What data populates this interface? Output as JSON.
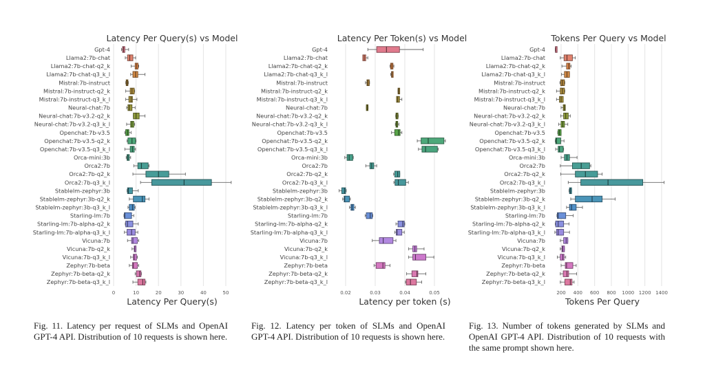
{
  "models": [
    "Gpt-4",
    "Llama2:7b-chat",
    "Llama2:7b-chat-q2_k",
    "Llama2:7b-chat-q3_k_l",
    "Mistral:7b-instruct",
    "Mistral:7b-instruct-q2_k",
    "Mistral:7b-instruct-q3_k_l",
    "Neural-chat:7b",
    "Neural-chat:7b-v3.2-q2_k",
    "Neural-chat:7b-v3.2-q3_k_l",
    "Openchat:7b-v3.5",
    "Openchat:7b-v3.5-q2_k",
    "Openchat:7b-v3.5-q3_k_l",
    "Orca-mini:3b",
    "Orca2:7b",
    "Orca2:7b-q2_k",
    "Orca2:7b-q3_k_l",
    "Stablelm-zephyr:3b",
    "Stablelm-zephyr:3b-q2_k",
    "Stablelm-zephyr:3b-q3_k_l",
    "Starling-lm:7b",
    "Starling-lm:7b-alpha-q2_k",
    "Starling-lm:7b-alpha-q3_k_l",
    "Vicuna:7b",
    "Vicuna:7b-q2_k",
    "Vicuna:7b-q3_k_l",
    "Zephyr:7b-beta",
    "Zephyr:7b-beta-q2_k",
    "Zephyr:7b-beta-q3_k_l"
  ],
  "colors": [
    "#e07a8c",
    "#e0826e",
    "#e08a4c",
    "#d48c48",
    "#b58a40",
    "#b09040",
    "#a89440",
    "#9c983e",
    "#909c3e",
    "#7ea23e",
    "#5aa64a",
    "#4ea87a",
    "#4aa47e",
    "#48a08a",
    "#489e94",
    "#489c98",
    "#48989c",
    "#4898a4",
    "#4a94b8",
    "#5090c8",
    "#6a90d8",
    "#8a90e0",
    "#9a8ce0",
    "#b288e0",
    "#c47ed8",
    "#cc78cc",
    "#d478c0",
    "#d878b0",
    "#dc78a0"
  ],
  "chart_data": [
    {
      "type": "boxplot",
      "title": "Latency Per Query(s) vs Model",
      "xlabel": "Latency Per Query(s)",
      "ylabel": "",
      "xlim": [
        0,
        53
      ],
      "xticks": [
        0,
        10,
        20,
        30,
        40,
        50
      ],
      "grid": true,
      "series": [
        {
          "model": "Gpt-4",
          "whislo": 3.5,
          "q1": 4.0,
          "med": 4.4,
          "q3": 5.0,
          "whishi": 6.7
        },
        {
          "model": "Llama2:7b-chat",
          "whislo": 5.2,
          "q1": 6.2,
          "med": 7.2,
          "q3": 8.6,
          "whishi": 9.8
        },
        {
          "model": "Llama2:7b-chat-q2_k",
          "whislo": 7.8,
          "q1": 9.6,
          "med": 10.2,
          "q3": 10.9,
          "whishi": 11.2
        },
        {
          "model": "Llama2:7b-chat-q3_k_l",
          "whislo": 7.6,
          "q1": 8.6,
          "med": 9.8,
          "q3": 10.8,
          "whishi": 14.0
        },
        {
          "model": "Mistral:7b-instruct",
          "whislo": 5.4,
          "q1": 5.6,
          "med": 6.0,
          "q3": 6.4,
          "whishi": 6.6
        },
        {
          "model": "Mistral:7b-instruct-q2_k",
          "whislo": 5.4,
          "q1": 7.4,
          "med": 8.2,
          "q3": 9.2,
          "whishi": 9.4
        },
        {
          "model": "Mistral:7b-instruct-q3_k_l",
          "whislo": 5.4,
          "q1": 6.8,
          "med": 7.8,
          "q3": 8.4,
          "whishi": 10.4
        },
        {
          "model": "Neural-chat:7b",
          "whislo": 5.8,
          "q1": 6.4,
          "med": 7.0,
          "q3": 8.2,
          "whishi": 9.6
        },
        {
          "model": "Neural-chat:7b-v3.2-q2_k",
          "whislo": 8.8,
          "q1": 8.8,
          "med": 10.0,
          "q3": 11.4,
          "whishi": 14.0
        },
        {
          "model": "Neural-chat:7b-v3.2-q3_k_l",
          "whislo": 5.8,
          "q1": 7.6,
          "med": 8.2,
          "q3": 9.0,
          "whishi": 9.4
        },
        {
          "model": "Openchat:7b-v3.5",
          "whislo": 5.0,
          "q1": 5.4,
          "med": 6.2,
          "q3": 6.8,
          "whishi": 7.8
        },
        {
          "model": "Openchat:7b-v3.5-q2_k",
          "whislo": 6.0,
          "q1": 6.4,
          "med": 8.2,
          "q3": 9.8,
          "whishi": 10.0
        },
        {
          "model": "Openchat:7b-v3.5-q3_k_l",
          "whislo": 5.0,
          "q1": 7.4,
          "med": 8.4,
          "q3": 9.2,
          "whishi": 9.8
        },
        {
          "model": "Orca-mini:3b",
          "whislo": 5.6,
          "q1": 6.0,
          "med": 6.4,
          "q3": 7.0,
          "whishi": 7.6
        },
        {
          "model": "Orca2:7b",
          "whislo": 9.0,
          "q1": 10.8,
          "med": 12.4,
          "q3": 15.4,
          "whishi": 15.8
        },
        {
          "model": "Orca2:7b-q2_k",
          "whislo": 8.6,
          "q1": 14.4,
          "med": 20.0,
          "q3": 24.6,
          "whishi": 32.0
        },
        {
          "model": "Orca2:7b-q3_k_l",
          "whislo": 12.0,
          "q1": 17.0,
          "med": 31.4,
          "q3": 43.6,
          "whishi": 52.4
        },
        {
          "model": "Stablelm-zephyr:3b",
          "whislo": 6.0,
          "q1": 6.2,
          "med": 6.6,
          "q3": 8.4,
          "whishi": 11.0
        },
        {
          "model": "Stablelm-zephyr:3b-q2_k",
          "whislo": 7.0,
          "q1": 8.8,
          "med": 12.8,
          "q3": 14.0,
          "whishi": 15.8
        },
        {
          "model": "Stablelm-zephyr:3b-q3_k_l",
          "whislo": 6.4,
          "q1": 7.0,
          "med": 8.4,
          "q3": 9.2,
          "whishi": 9.6
        },
        {
          "model": "Starling-lm:7b",
          "whislo": 4.6,
          "q1": 4.8,
          "med": 5.0,
          "q3": 8.0,
          "whishi": 9.0
        },
        {
          "model": "Starling-lm:7b-alpha-q2_k",
          "whislo": 5.2,
          "q1": 5.4,
          "med": 6.2,
          "q3": 8.6,
          "whishi": 11.0
        },
        {
          "model": "Starling-lm:7b-alpha-q3_k_l",
          "whislo": 4.8,
          "q1": 6.0,
          "med": 8.0,
          "q3": 9.6,
          "whishi": 10.8
        },
        {
          "model": "Vicuna:7b",
          "whislo": 6.2,
          "q1": 8.0,
          "med": 8.6,
          "q3": 10.6,
          "whishi": 11.2
        },
        {
          "model": "Vicuna:7b-q2_k",
          "whislo": 8.2,
          "q1": 9.2,
          "med": 9.4,
          "q3": 10.0,
          "whishi": 10.0
        },
        {
          "model": "Vicuna:7b-q3_k_l",
          "whislo": 7.6,
          "q1": 8.8,
          "med": 9.2,
          "q3": 10.2,
          "whishi": 10.6
        },
        {
          "model": "Zephyr:7b-beta",
          "whislo": 7.0,
          "q1": 8.4,
          "med": 8.8,
          "q3": 10.6,
          "whishi": 11.2
        },
        {
          "model": "Zephyr:7b-beta-q2_k",
          "whislo": 9.6,
          "q1": 10.2,
          "med": 11.6,
          "q3": 12.2,
          "whishi": 12.4
        },
        {
          "model": "Zephyr:7b-beta-q3_k_l",
          "whislo": 8.6,
          "q1": 10.8,
          "med": 13.0,
          "q3": 14.0,
          "whishi": 14.4
        }
      ]
    },
    {
      "type": "boxplot",
      "title": "Latency Per Token(s) vs Model",
      "xlabel": "Latency per token (s)",
      "ylabel": "",
      "xlim": [
        0.0165,
        0.0565
      ],
      "xticks": [
        0.02,
        0.03,
        0.04,
        0.05
      ],
      "grid": true,
      "series": [
        {
          "model": "Gpt-4",
          "whislo": 0.0275,
          "q1": 0.0305,
          "med": 0.0338,
          "q3": 0.0382,
          "whishi": 0.0462
        },
        {
          "model": "Llama2:7b-chat",
          "whislo": 0.0258,
          "q1": 0.0258,
          "med": 0.0263,
          "q3": 0.0268,
          "whishi": 0.0275
        },
        {
          "model": "Llama2:7b-chat-q2_k",
          "whislo": 0.035,
          "q1": 0.0352,
          "med": 0.0356,
          "q3": 0.036,
          "whishi": 0.0363
        },
        {
          "model": "Llama2:7b-chat-q3_k_l",
          "whislo": 0.0352,
          "q1": 0.0355,
          "med": 0.0357,
          "q3": 0.036,
          "whishi": 0.036
        },
        {
          "model": "Mistral:7b-instruct",
          "whislo": 0.0267,
          "q1": 0.0272,
          "med": 0.0275,
          "q3": 0.028,
          "whishi": 0.0281
        },
        {
          "model": "Mistral:7b-instruct-q2_k",
          "whislo": 0.0377,
          "q1": 0.0377,
          "med": 0.0379,
          "q3": 0.0382,
          "whishi": 0.0382
        },
        {
          "model": "Mistral:7b-instruct-q3_k_l",
          "whislo": 0.0372,
          "q1": 0.0372,
          "med": 0.0376,
          "q3": 0.0382,
          "whishi": 0.039
        },
        {
          "model": "Neural-chat:7b",
          "whislo": 0.027,
          "q1": 0.027,
          "med": 0.0273,
          "q3": 0.0275,
          "whishi": 0.0276
        },
        {
          "model": "Neural-chat:7b-v3.2-q2_k",
          "whislo": 0.0369,
          "q1": 0.037,
          "med": 0.0373,
          "q3": 0.0377,
          "whishi": 0.0378
        },
        {
          "model": "Neural-chat:7b-v3.2-q3_k_l",
          "whislo": 0.0368,
          "q1": 0.037,
          "med": 0.0373,
          "q3": 0.0376,
          "whishi": 0.038
        },
        {
          "model": "Openchat:7b-v3.5",
          "whislo": 0.0355,
          "q1": 0.0366,
          "med": 0.0379,
          "q3": 0.0384,
          "whishi": 0.039
        },
        {
          "model": "Openchat:7b-v3.5-q2_k",
          "whislo": 0.0442,
          "q1": 0.0455,
          "med": 0.0479,
          "q3": 0.0532,
          "whishi": 0.0537
        },
        {
          "model": "Openchat:7b-v3.5-q3_k_l",
          "whislo": 0.0446,
          "q1": 0.0458,
          "med": 0.047,
          "q3": 0.051,
          "whishi": 0.0513
        },
        {
          "model": "Orca-mini:3b",
          "whislo": 0.0197,
          "q1": 0.0205,
          "med": 0.0212,
          "q3": 0.0224,
          "whishi": 0.0226
        },
        {
          "model": "Orca2:7b",
          "whislo": 0.0268,
          "q1": 0.0282,
          "med": 0.0288,
          "q3": 0.0295,
          "whishi": 0.0305
        },
        {
          "model": "Orca2:7b-q2_k",
          "whislo": 0.0362,
          "q1": 0.0366,
          "med": 0.0376,
          "q3": 0.0383,
          "whishi": 0.0383
        },
        {
          "model": "Orca2:7b-q3_k_l",
          "whislo": 0.0363,
          "q1": 0.0367,
          "med": 0.0378,
          "q3": 0.0403,
          "whishi": 0.0412
        },
        {
          "model": "Stablelm-zephyr:3b",
          "whislo": 0.0178,
          "q1": 0.0187,
          "med": 0.0196,
          "q3": 0.02,
          "whishi": 0.0202
        },
        {
          "model": "Stablelm-zephyr:3b-q2_k",
          "whislo": 0.019,
          "q1": 0.0195,
          "med": 0.0197,
          "q3": 0.0213,
          "whishi": 0.0216
        },
        {
          "model": "Stablelm-zephyr:3b-q3_k_l",
          "whislo": 0.0213,
          "q1": 0.0218,
          "med": 0.0222,
          "q3": 0.0228,
          "whishi": 0.0233
        },
        {
          "model": "Starling-lm:7b",
          "whislo": 0.0266,
          "q1": 0.027,
          "med": 0.0283,
          "q3": 0.029,
          "whishi": 0.0292
        },
        {
          "model": "Starling-lm:7b-alpha-q2_k",
          "whislo": 0.037,
          "q1": 0.0377,
          "med": 0.0393,
          "q3": 0.0398,
          "whishi": 0.04
        },
        {
          "model": "Starling-lm:7b-alpha-q3_k_l",
          "whislo": 0.0366,
          "q1": 0.0371,
          "med": 0.0374,
          "q3": 0.039,
          "whishi": 0.0398
        },
        {
          "model": "Vicuna:7b",
          "whislo": 0.029,
          "q1": 0.0314,
          "med": 0.0327,
          "q3": 0.036,
          "whishi": 0.037
        },
        {
          "model": "Vicuna:7b-q2_k",
          "whislo": 0.0413,
          "q1": 0.0427,
          "med": 0.0434,
          "q3": 0.044,
          "whishi": 0.0465
        },
        {
          "model": "Vicuna:7b-q3_k_l",
          "whislo": 0.0413,
          "q1": 0.0427,
          "med": 0.0436,
          "q3": 0.0471,
          "whishi": 0.0498
        },
        {
          "model": "Zephyr:7b-beta",
          "whislo": 0.0296,
          "q1": 0.0303,
          "med": 0.0326,
          "q3": 0.0333,
          "whishi": 0.035
        },
        {
          "model": "Zephyr:7b-beta-q2_k",
          "whislo": 0.0406,
          "q1": 0.0424,
          "med": 0.0441,
          "q3": 0.0444,
          "whishi": 0.0471
        },
        {
          "model": "Zephyr:7b-beta-q3_k_l",
          "whislo": 0.0402,
          "q1": 0.0405,
          "med": 0.0419,
          "q3": 0.0439,
          "whishi": 0.0457
        }
      ]
    },
    {
      "type": "boxplot",
      "title": "Tokens Per Query vs Model",
      "xlabel": "Tokens Per Query",
      "ylabel": "",
      "xlim": [
        100,
        1450
      ],
      "xticks": [
        200,
        400,
        600,
        800,
        1000,
        1200,
        1400
      ],
      "grid": true,
      "series": [
        {
          "model": "Gpt-4",
          "whislo": 130,
          "q1": 132,
          "med": 135,
          "q3": 138,
          "whishi": 140
        },
        {
          "model": "Llama2:7b-chat",
          "whislo": 190,
          "q1": 235,
          "med": 270,
          "q3": 335,
          "whishi": 370
        },
        {
          "model": "Llama2:7b-chat-q2_k",
          "whislo": 210,
          "q1": 265,
          "med": 290,
          "q3": 305,
          "whishi": 320
        },
        {
          "model": "Llama2:7b-chat-q3_k_l",
          "whislo": 205,
          "q1": 240,
          "med": 270,
          "q3": 300,
          "whishi": 300
        },
        {
          "model": "Mistral:7b-instruct",
          "whislo": 185,
          "q1": 195,
          "med": 215,
          "q3": 240,
          "whishi": 245
        },
        {
          "model": "Mistral:7b-instruct-q2_k",
          "whislo": 145,
          "q1": 190,
          "med": 215,
          "q3": 240,
          "whishi": 245
        },
        {
          "model": "Mistral:7b-instruct-q3_k_l",
          "whislo": 145,
          "q1": 180,
          "med": 200,
          "q3": 225,
          "whishi": 225
        },
        {
          "model": "Neural-chat:7b",
          "whislo": 200,
          "q1": 225,
          "med": 240,
          "q3": 250,
          "whishi": 250
        },
        {
          "model": "Neural-chat:7b-v3.2-q2_k",
          "whislo": 195,
          "q1": 230,
          "med": 255,
          "q3": 285,
          "whishi": 310
        },
        {
          "model": "Neural-chat:7b-v3.2-q3_k_l",
          "whislo": 170,
          "q1": 200,
          "med": 220,
          "q3": 240,
          "whishi": 280
        },
        {
          "model": "Openchat:7b-v3.5",
          "whislo": 160,
          "q1": 165,
          "med": 180,
          "q3": 200,
          "whishi": 200
        },
        {
          "model": "Openchat:7b-v3.5-q2_k",
          "whislo": 130,
          "q1": 135,
          "med": 145,
          "q3": 195,
          "whishi": 235
        },
        {
          "model": "Openchat:7b-v3.5-q3_k_l",
          "whislo": 135,
          "q1": 165,
          "med": 180,
          "q3": 225,
          "whishi": 230
        },
        {
          "model": "Orca-mini:3b",
          "whislo": 200,
          "q1": 240,
          "med": 270,
          "q3": 300,
          "whishi": 390
        },
        {
          "model": "Orca2:7b",
          "whislo": 190,
          "q1": 335,
          "med": 440,
          "q3": 540,
          "whishi": 555
        },
        {
          "model": "Orca2:7b-q2_k",
          "whislo": 195,
          "q1": 370,
          "med": 490,
          "q3": 635,
          "whishi": 690
        },
        {
          "model": "Orca2:7b-q3_k_l",
          "whislo": 285,
          "q1": 435,
          "med": 760,
          "q3": 1175,
          "whishi": 1430
        },
        {
          "model": "Stablelm-zephyr:3b",
          "whislo": 295,
          "q1": 300,
          "med": 310,
          "q3": 325,
          "whishi": 325
        },
        {
          "model": "Stablelm-zephyr:3b-q2_k",
          "whislo": 315,
          "q1": 370,
          "med": 570,
          "q3": 690,
          "whishi": 845
        },
        {
          "model": "Stablelm-zephyr:3b-q3_k_l",
          "whislo": 265,
          "q1": 300,
          "med": 325,
          "q3": 380,
          "whishi": 455
        },
        {
          "model": "Starling-lm:7b",
          "whislo": 150,
          "q1": 155,
          "med": 165,
          "q3": 255,
          "whishi": 345
        },
        {
          "model": "Starling-lm:7b-alpha-q2_k",
          "whislo": 130,
          "q1": 135,
          "med": 165,
          "q3": 230,
          "whishi": 295
        },
        {
          "model": "Starling-lm:7b-alpha-q3_k_l",
          "whislo": 125,
          "q1": 145,
          "med": 165,
          "q3": 230,
          "whishi": 300
        },
        {
          "model": "Vicuna:7b",
          "whislo": 190,
          "q1": 230,
          "med": 260,
          "q3": 280,
          "whishi": 280
        },
        {
          "model": "Vicuna:7b-q2_k",
          "whislo": 190,
          "q1": 210,
          "med": 220,
          "q3": 240,
          "whishi": 240
        },
        {
          "model": "Vicuna:7b-q3_k_l",
          "whislo": 155,
          "q1": 190,
          "med": 220,
          "q3": 235,
          "whishi": 255
        },
        {
          "model": "Zephyr:7b-beta",
          "whislo": 200,
          "q1": 250,
          "med": 265,
          "q3": 340,
          "whishi": 380
        },
        {
          "model": "Zephyr:7b-beta-q2_k",
          "whislo": 190,
          "q1": 225,
          "med": 270,
          "q3": 290,
          "whishi": 385
        },
        {
          "model": "Zephyr:7b-beta-q3_k_l",
          "whislo": 190,
          "q1": 245,
          "med": 310,
          "q3": 330,
          "whishi": 355
        }
      ]
    }
  ],
  "captions": [
    "Fig. 11.  Latency per request of SLMs and OpenAI GPT-4 API. Distribution of 10 requests is shown here.",
    "Fig. 12.  Latency per token of SLMs and OpenAI GPT-4 API. Distribution of 10 requests is shown here.",
    "Fig. 13.  Number of tokens generated by SLMs and OpenAI GPT-4 API. Distribution of 10 requests with the same prompt shown here."
  ]
}
